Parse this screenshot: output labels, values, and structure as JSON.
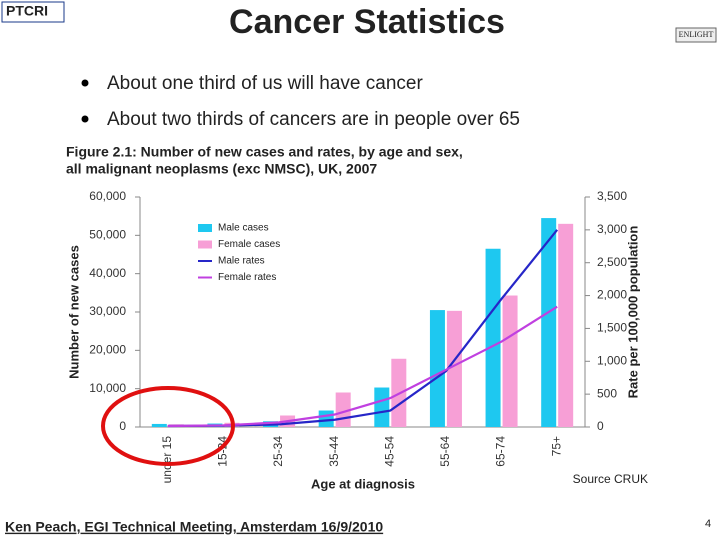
{
  "slide": {
    "title": "Cancer Statistics",
    "logos": [
      "PTCRI",
      "ENLIGHT"
    ],
    "bullets": [
      "About one third of us will have cancer",
      "About two thirds of cancers are in people over 65"
    ],
    "source": "Source CRUK",
    "footer": "Ken Peach, EGI Technical Meeting, Amsterdam 16/9/2010",
    "page_number": "4"
  },
  "chart_data": {
    "type": "bar",
    "title": [
      "Figure 2.1: Number of new cases and rates, by age and sex,",
      "all malignant neoplasms (exc NMSC), UK, 2007"
    ],
    "x_label": "Age at diagnosis",
    "y_label": "Number of new cases",
    "y2_label": "Rate per 100,000 population",
    "categories": [
      "under 15",
      "15-24",
      "25-34",
      "35-44",
      "45-54",
      "55-64",
      "65-74",
      "75+"
    ],
    "series": [
      {
        "name": "Male cases",
        "type": "bar",
        "color": "#1ec8f0",
        "values": [
          800,
          900,
          1500,
          4300,
          10300,
          30500,
          46500,
          54500
        ]
      },
      {
        "name": "Female cases",
        "type": "bar",
        "color": "#f79fd6",
        "values": [
          700,
          1100,
          3000,
          9000,
          17800,
          30300,
          34300,
          53000
        ]
      },
      {
        "name": "Male rates",
        "type": "line",
        "axis": "y2",
        "color": "#2626c8",
        "values": [
          15,
          20,
          40,
          110,
          250,
          850,
          1950,
          3000
        ]
      },
      {
        "name": "Female rates",
        "type": "line",
        "axis": "y2",
        "color": "#c040e0",
        "values": [
          15,
          25,
          70,
          190,
          440,
          870,
          1300,
          1830
        ]
      }
    ],
    "ylim": [
      0,
      60000
    ],
    "yticks": [
      0,
      {
        "value": 10000,
        "label": "10,000"
      },
      {
        "value": 20000,
        "label": "20,000"
      },
      {
        "value": 30000,
        "label": "30,000"
      },
      {
        "value": 40000,
        "label": "40,000"
      },
      {
        "value": 50000,
        "label": "50,000"
      },
      {
        "value": 60000,
        "label": "60,000"
      }
    ],
    "y2lim": [
      0,
      3500
    ],
    "y2ticks": [
      0,
      500,
      {
        "value": 1000,
        "label": "1,000"
      },
      {
        "value": 1500,
        "label": "1,500"
      },
      {
        "value": 2000,
        "label": "2,000"
      },
      {
        "value": 2500,
        "label": "2,500"
      },
      {
        "value": 3000,
        "label": "3,000"
      },
      {
        "value": 3500,
        "label": "3,500"
      }
    ],
    "grid": false,
    "legend_position": "upper left"
  }
}
